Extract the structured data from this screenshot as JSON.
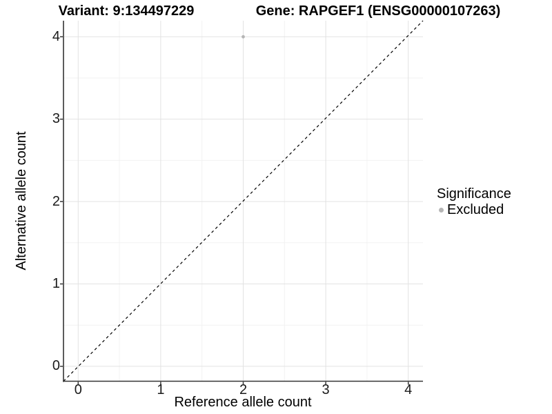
{
  "header": {
    "variant_title": "Variant: 9:134497229",
    "gene_title": "Gene: RAPGEF1 (ENSG00000107263)"
  },
  "chart_data": {
    "type": "scatter",
    "titles": [
      "Variant: 9:134497229",
      "Gene: RAPGEF1 (ENSG00000107263)"
    ],
    "xlabel": "Reference allele count",
    "ylabel": "Alternative allele count",
    "x_ticks": [
      0,
      1,
      2,
      3,
      4
    ],
    "y_ticks": [
      0,
      1,
      2,
      3,
      4
    ],
    "xlim": [
      -0.2,
      4.2
    ],
    "ylim": [
      -0.2,
      4.2
    ],
    "grid": {
      "major_x": [
        0,
        1,
        2,
        3,
        4
      ],
      "major_y": [
        0,
        1,
        2,
        3,
        4
      ],
      "minor_x": [
        0.5,
        1.5,
        2.5,
        3.5
      ],
      "minor_y": [
        0.5,
        1.5,
        2.5,
        3.5
      ],
      "major_color": "#e2e2e2",
      "minor_color": "#f2f2f2"
    },
    "reference_line": {
      "equation": "y = x",
      "style": "dashed",
      "color": "#000000"
    },
    "series": [
      {
        "name": "Excluded",
        "color": "#b5b5b5",
        "points": [
          {
            "x": 2,
            "y": 4
          }
        ]
      }
    ],
    "legend": {
      "position": "right",
      "title": "Significance",
      "items": [
        {
          "label": "Excluded",
          "color": "#b5b5b5"
        }
      ]
    },
    "axis_color": "#333333"
  }
}
